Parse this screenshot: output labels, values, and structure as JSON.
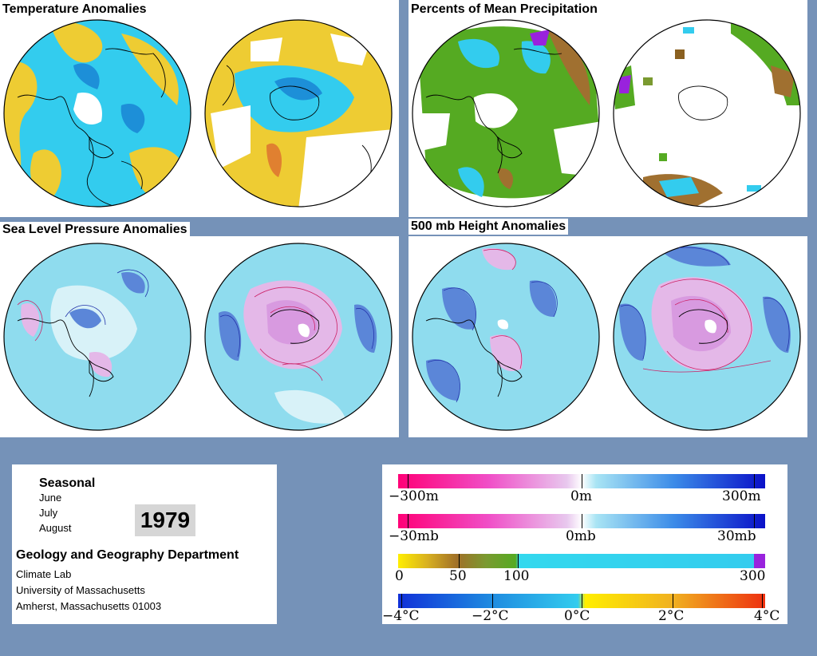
{
  "panels": {
    "temperature": {
      "title": "Temperature Anomalies"
    },
    "precipitation": {
      "title": "Percents of Mean Precipitation"
    },
    "sea_level_pressure": {
      "title": "Sea Level Pressure Anomalies"
    },
    "height_500mb": {
      "title": "500 mb Height Anomalies"
    }
  },
  "info": {
    "period": "Seasonal",
    "months": [
      "June",
      "July",
      "August"
    ],
    "year": "1979",
    "department": "Geology and Geography Department",
    "address_lines": [
      "Climate Lab",
      "University of Massachusetts",
      "Amherst, Massachusetts 01003"
    ]
  },
  "legend": {
    "height": {
      "labels": [
        "−300m",
        "0m",
        "300m"
      ]
    },
    "pressure": {
      "labels": [
        "−30mb",
        "0mb",
        "30mb"
      ]
    },
    "precip": {
      "labels": [
        "0",
        "50",
        "100",
        "300"
      ]
    },
    "temp": {
      "labels": [
        "−4°C",
        "−2°C",
        "0°C",
        "2°C",
        "4°C"
      ]
    }
  },
  "colors": {
    "background": "#7592b8",
    "anomaly_cyan": "#33ccee",
    "anomaly_yellow": "#eecc33",
    "pressure_light": "#aee6f2",
    "contour_negative": "#2233aa",
    "contour_positive": "#cc2266"
  }
}
